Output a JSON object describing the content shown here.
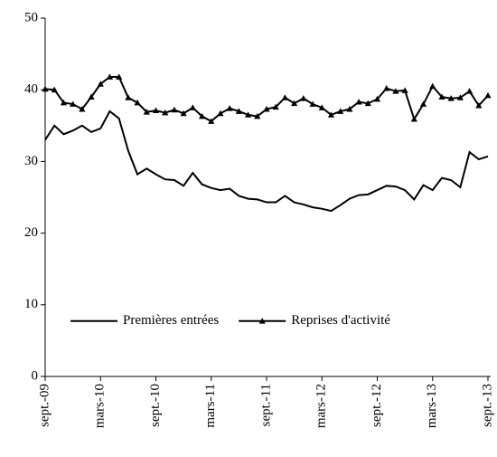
{
  "chart_data": {
    "type": "line",
    "categories": [
      "sept.-09",
      null,
      null,
      null,
      null,
      null,
      "mars-10",
      null,
      null,
      null,
      null,
      null,
      "sept.-10",
      null,
      null,
      null,
      null,
      null,
      "mars-11",
      null,
      null,
      null,
      null,
      null,
      "sept.-11",
      null,
      null,
      null,
      null,
      null,
      "mars-12",
      null,
      null,
      null,
      null,
      null,
      "sept.-12",
      null,
      null,
      null,
      null,
      null,
      "mars-13",
      null,
      null,
      null,
      null,
      null,
      "sept.-13"
    ],
    "series": [
      {
        "name": "Premières entrées",
        "color": "#000000",
        "marker": "none",
        "values": [
          33,
          35,
          33.8,
          34.3,
          35,
          34.1,
          34.6,
          37,
          36,
          31.5,
          28.2,
          29,
          28.2,
          27.5,
          27.4,
          26.6,
          28.4,
          26.8,
          26.3,
          26,
          26.2,
          25.2,
          24.8,
          24.7,
          24.3,
          24.3,
          25.2,
          24.3,
          24,
          23.6,
          23.4,
          23.1,
          23.9,
          24.8,
          25.3,
          25.4,
          26,
          26.6,
          26.5,
          26,
          24.7,
          26.7,
          26,
          27.7,
          27.4,
          26.4,
          31.3,
          30.3,
          30.7
        ]
      },
      {
        "name": "Reprises d'activité",
        "color": "#000000",
        "marker": "triangle",
        "values": [
          40.1,
          40,
          38.2,
          38,
          37.3,
          39,
          40.8,
          41.8,
          41.8,
          38.9,
          38.2,
          36.9,
          37.1,
          36.8,
          37.2,
          36.7,
          37.5,
          36.3,
          35.6,
          36.7,
          37.4,
          37,
          36.5,
          36.3,
          37.3,
          37.6,
          38.9,
          38.1,
          38.8,
          38,
          37.5,
          36.5,
          37,
          37.3,
          38.3,
          38.1,
          38.7,
          40.2,
          39.8,
          39.9,
          35.9,
          38,
          40.5,
          39,
          38.8,
          38.9,
          39.8,
          37.8,
          39.2
        ]
      }
    ],
    "ylim": [
      0,
      50
    ],
    "yticks": [
      0,
      10,
      20,
      30,
      40,
      50
    ],
    "grid": false,
    "legend": "bottom"
  }
}
